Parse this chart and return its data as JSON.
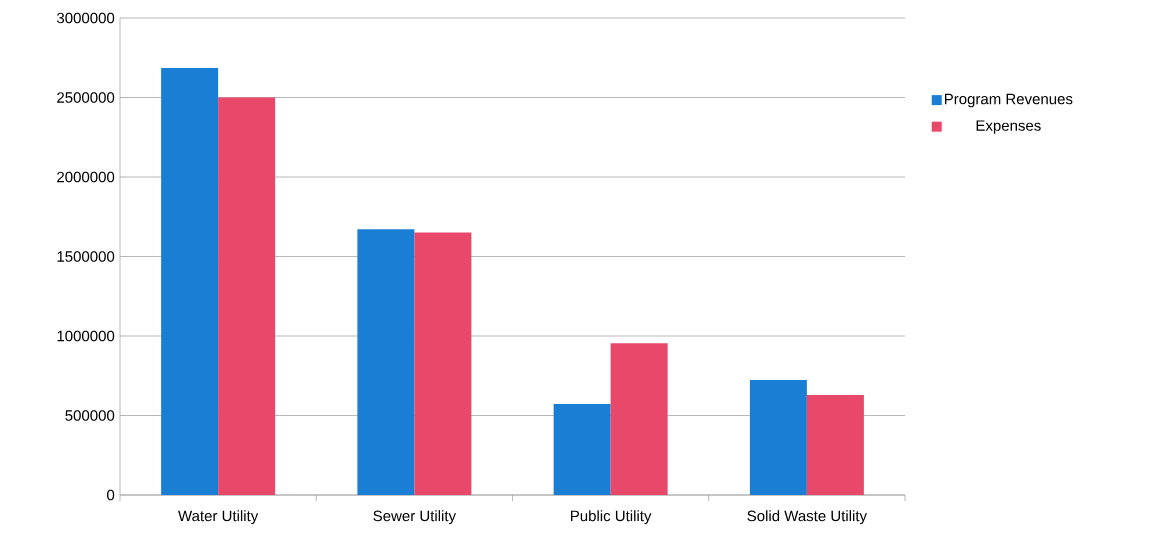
{
  "chart_data": {
    "type": "bar",
    "categories": [
      "Water Utility",
      "Sewer Utility",
      "Public Utility",
      "Solid Waste Utility"
    ],
    "series": [
      {
        "name": "Program Revenues",
        "color": "#1a7fd4",
        "values": [
          2685000,
          1671000,
          572000,
          724000
        ]
      },
      {
        "name": "Expenses",
        "color": "#e8496a",
        "values": [
          2500000,
          1651000,
          955000,
          629000
        ]
      }
    ],
    "ylim": [
      0,
      3000000
    ],
    "yticks": [
      0,
      500000,
      1000000,
      1500000,
      2000000,
      2500000,
      3000000
    ],
    "grid": "y",
    "legend": "right"
  }
}
